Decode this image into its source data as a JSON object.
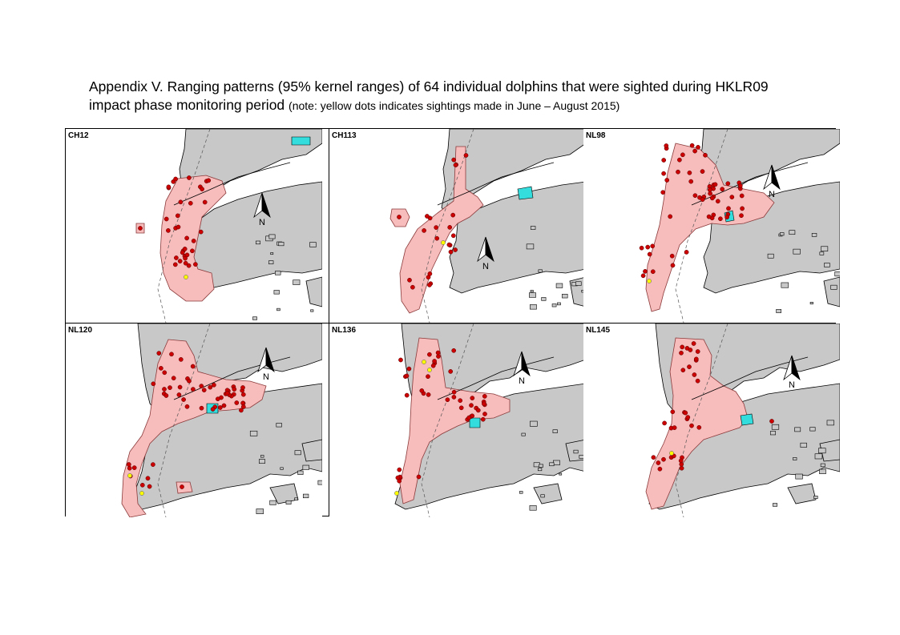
{
  "caption": {
    "line1": "Appendix V.  Ranging patterns (95% kernel ranges) of 64 individual dolphins that were sighted during HKLR09",
    "line2_main": "impact phase monitoring period",
    "line2_note": "(note: yellow dots indicates sightings made in June – August 2015)"
  },
  "colors": {
    "land": "#c8c8c8",
    "range_fill": "#f7bcbc",
    "sighting_red": "#cc0000",
    "sighting_yellow": "#ffff00",
    "facility": "#33dddd"
  },
  "panels": [
    {
      "id": "CH12",
      "north_label": "N"
    },
    {
      "id": "CH113",
      "north_label": "N"
    },
    {
      "id": "NL98",
      "north_label": "N"
    },
    {
      "id": "NL120",
      "north_label": "N"
    },
    {
      "id": "NL136",
      "north_label": "N"
    },
    {
      "id": "NL145",
      "north_label": "N"
    }
  ]
}
